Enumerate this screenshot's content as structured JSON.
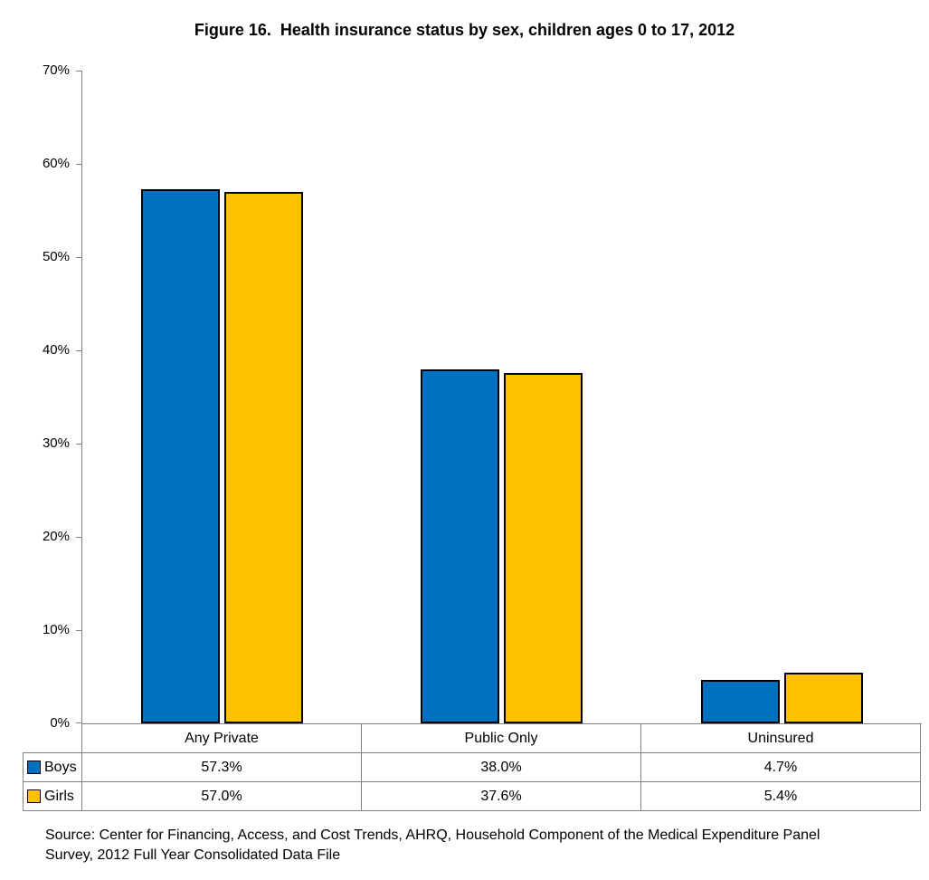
{
  "title": "Figure 16.  Health insurance status by sex, children ages 0 to 17, 2012",
  "chart_data": {
    "type": "bar",
    "categories": [
      "Any Private",
      "Public Only",
      "Uninsured"
    ],
    "series": [
      {
        "name": "Boys",
        "color": "#0070C0",
        "values": [
          57.3,
          38.0,
          4.7
        ],
        "value_labels": [
          "57.3%",
          "38.0%",
          "4.7%"
        ]
      },
      {
        "name": "Girls",
        "color": "#FFC000",
        "values": [
          57.0,
          37.6,
          5.4
        ],
        "value_labels": [
          "57.0%",
          "37.6%",
          "5.4%"
        ]
      }
    ],
    "ylim": [
      0,
      70
    ],
    "ytick_step": 10,
    "ytick_labels": [
      "0%",
      "10%",
      "20%",
      "30%",
      "40%",
      "50%",
      "60%",
      "70%"
    ],
    "grid": false,
    "legend_position": "table-left",
    "bar_border_color": "#000000",
    "axis_color": "#808080",
    "table_border_color": "#808080"
  },
  "source": {
    "line1": "Source: Center for Financing, Access, and Cost Trends, AHRQ, Household Component of the Medical Expenditure Panel",
    "line2": "Survey, 2012 Full Year Consolidated Data File"
  }
}
